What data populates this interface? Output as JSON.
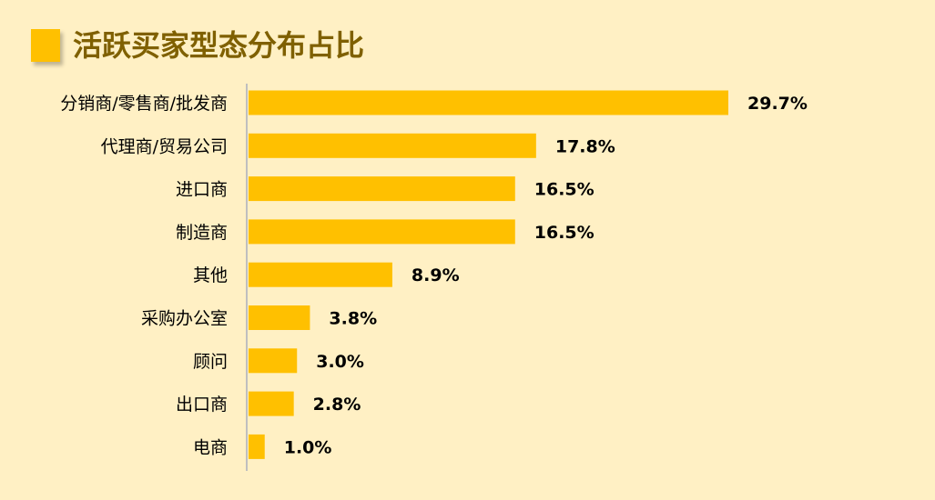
{
  "title": "活跃买家型态分布占比",
  "colors": {
    "background": "#FFF0C4",
    "bar": "#FFC000",
    "title": "#7F6000",
    "axis": "#BFBFBF"
  },
  "chart_data": {
    "type": "bar",
    "orientation": "horizontal",
    "title": "活跃买家型态分布占比",
    "categories": [
      "分销商/零售商/批发商",
      "代理商/贸易公司",
      "进口商",
      "制造商",
      "其他",
      "采购办公室",
      "顾问",
      "出口商",
      "电商"
    ],
    "values": [
      29.7,
      17.8,
      16.5,
      16.5,
      8.9,
      3.8,
      3.0,
      2.8,
      1.0
    ],
    "value_labels": [
      "29.7%",
      "17.8%",
      "16.5%",
      "16.5%",
      "8.9%",
      "3.8%",
      "3.0%",
      "2.8%",
      "1.0%"
    ],
    "unit": "%",
    "xlim": [
      0,
      30
    ],
    "grid": false,
    "legend": "none"
  }
}
